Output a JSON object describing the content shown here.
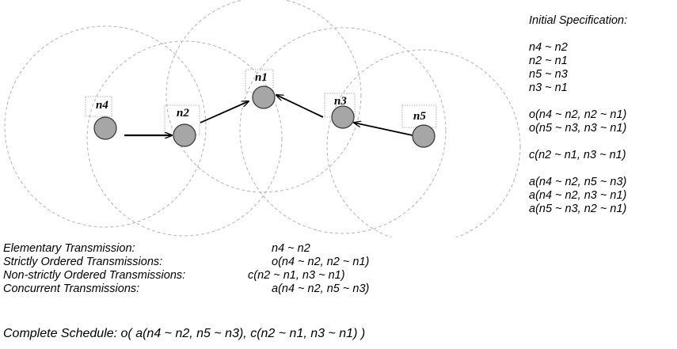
{
  "nodes": {
    "n1": {
      "label": "n1"
    },
    "n2": {
      "label": "n2"
    },
    "n3": {
      "label": "n3"
    },
    "n4": {
      "label": "n4"
    },
    "n5": {
      "label": "n5"
    }
  },
  "specification": {
    "title": "Initial Specification:",
    "elementary": [
      "n4 ~ n2",
      "n2 ~ n1",
      "n5 ~ n3",
      "n3 ~ n1"
    ],
    "ordered": [
      "o(n4 ~ n2, n2 ~ n1)",
      "o(n5 ~ n3, n3 ~ n1)"
    ],
    "nonstrict": [
      "c(n2 ~ n1, n3 ~ n1)"
    ],
    "concurrent": [
      "a(n4 ~ n2, n5 ~ n3)",
      "a(n4 ~ n2, n3 ~ n1)",
      "a(n5 ~ n3, n2 ~ n1)"
    ]
  },
  "legend": [
    {
      "term": "Elementary Transmission:",
      "example": "n4 ~ n2"
    },
    {
      "term": "Strictly Ordered Transmissions:",
      "example": "o(n4 ~ n2, n2 ~ n1)"
    },
    {
      "term": "Non-strictly Ordered Transmissions:",
      "example": "c(n2 ~ n1, n3 ~ n1)"
    },
    {
      "term": "Concurrent Transmissions:",
      "example": "a(n4 ~ n2, n5 ~ n3)"
    }
  ],
  "schedule": "Complete Schedule: o( a(n4 ~ n2, n5 ~ n3), c(n2 ~ n1, n3 ~ n1) )"
}
